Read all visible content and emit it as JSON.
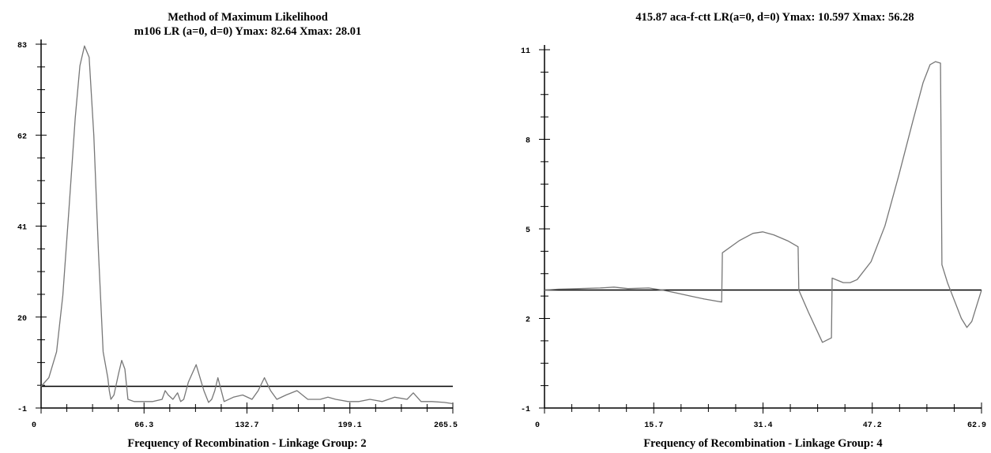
{
  "chart_data": [
    {
      "type": "line",
      "title": "Method of Maximum Likelihood",
      "subtitle": "m106 LR (a=0, d=0)  Ymax: 82.64   Xmax: 28.01",
      "xlabel": "Frequency of Recombination - Linkage Group: 2",
      "ylabel": "",
      "xlim": [
        0,
        265.5
      ],
      "ylim": [
        -1,
        83
      ],
      "xticks": [
        "0",
        "66.3",
        "132.7",
        "199.1",
        "265.5"
      ],
      "yticks": [
        "-1",
        "20",
        "41",
        "62",
        "83"
      ],
      "reference_line": 4,
      "grid": false,
      "legend": "none",
      "line_color": "#777777",
      "series": [
        {
          "x": [
            0,
            5,
            10,
            14,
            18,
            22,
            25,
            28,
            31,
            34,
            37,
            40,
            43,
            44,
            45,
            47,
            50,
            52,
            54,
            56,
            60,
            66,
            72,
            78,
            80,
            82,
            85,
            88,
            90,
            92,
            95,
            100,
            105,
            108,
            110,
            112,
            114,
            118,
            124,
            130,
            136,
            140,
            144,
            148,
            152,
            158,
            165,
            172,
            180,
            185,
            190,
            198,
            205,
            212,
            220,
            228,
            236,
            240,
            245,
            252,
            260,
            265.5
          ],
          "y": [
            4,
            6,
            12,
            25,
            45,
            66,
            78,
            82.6,
            80,
            62,
            35,
            12,
            6,
            3,
            1,
            2,
            7,
            10,
            8,
            1,
            0.5,
            0.5,
            0.5,
            1,
            3,
            2,
            1,
            2.5,
            0.5,
            1,
            5,
            9,
            3,
            0.3,
            1,
            3,
            6,
            0.5,
            1.5,
            2,
            1,
            3,
            6,
            3,
            1,
            2,
            3,
            1,
            1,
            1.5,
            1,
            0.5,
            0.5,
            1,
            0.5,
            1.5,
            1,
            2.5,
            0.5,
            0.5,
            0.3,
            0
          ]
        }
      ]
    },
    {
      "type": "line",
      "title": "415.87 aca-f-ctt  LR(a=0, d=0)  Ymax: 10.597   Xmax: 56.28",
      "xlabel": "Frequency of Recombination - Linkage Group: 4",
      "ylabel": "",
      "xlim": [
        0,
        62.9
      ],
      "ylim": [
        -1,
        11
      ],
      "xticks": [
        "0",
        "15.7",
        "31.4",
        "47.2",
        "62.9"
      ],
      "yticks": [
        "-1",
        "2",
        "5",
        "8",
        "11"
      ],
      "reference_line": 2.95,
      "grid": false,
      "legend": "none",
      "line_color": "#777777",
      "series": [
        {
          "x": [
            0,
            2,
            5,
            8,
            10,
            12,
            15,
            17,
            19,
            21,
            23,
            25.5,
            25.6,
            28,
            30,
            31.4,
            33,
            35,
            36.5,
            36.6,
            38,
            40,
            41.3,
            41.4,
            43,
            44,
            45,
            47,
            49,
            51,
            53,
            54.5,
            55.5,
            56.28,
            57,
            57.2,
            58,
            59,
            60,
            60.8,
            61.5,
            62.3,
            62.9
          ],
          "y": [
            2.95,
            2.98,
            3.0,
            3.02,
            3.05,
            3.0,
            3.02,
            2.95,
            2.85,
            2.75,
            2.65,
            2.55,
            4.2,
            4.6,
            4.85,
            4.9,
            4.8,
            4.6,
            4.4,
            2.95,
            2.2,
            1.2,
            1.35,
            3.35,
            3.2,
            3.2,
            3.3,
            3.9,
            5.1,
            6.8,
            8.6,
            9.9,
            10.5,
            10.6,
            10.55,
            3.8,
            3.2,
            2.6,
            2.0,
            1.7,
            1.9,
            2.5,
            2.95
          ]
        }
      ]
    }
  ]
}
